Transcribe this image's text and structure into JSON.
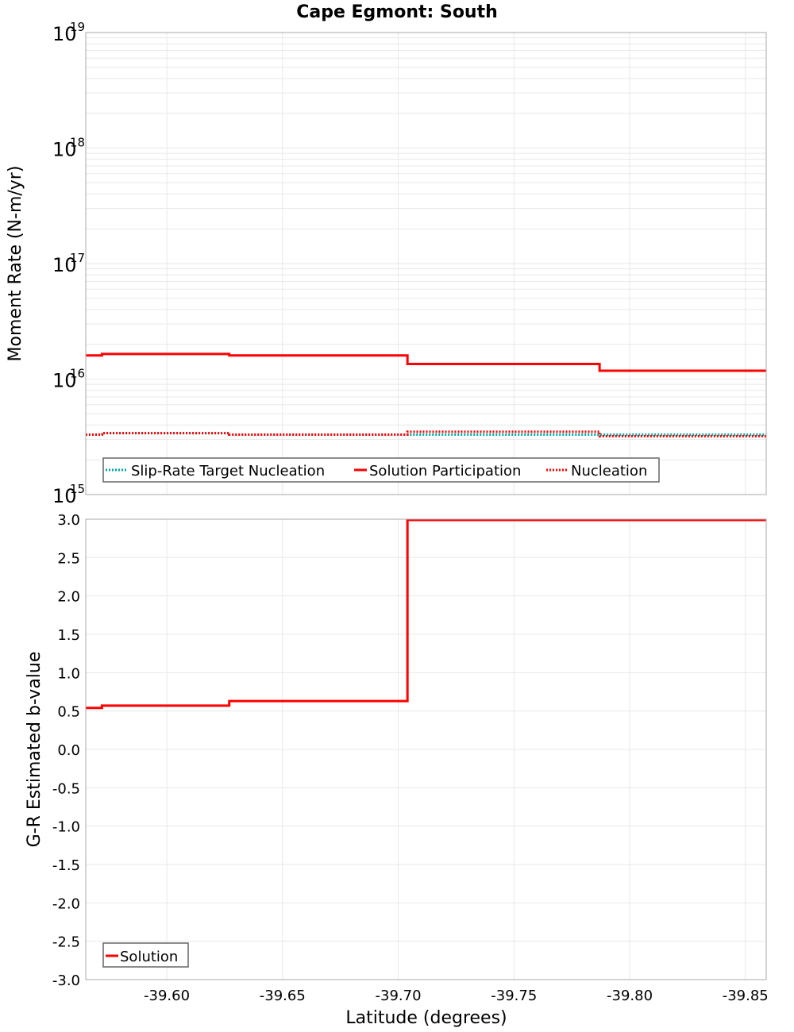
{
  "title": "Cape Egmont: South",
  "colors": {
    "solution": "#ff0000",
    "target": "#00aaaa",
    "nucleation": "#ff0000",
    "grid": "#e8e8e8",
    "axis": "#aaaaaa"
  },
  "top_panel": {
    "ylabel": "Moment Rate (N-m/yr)",
    "yticks": [
      {
        "base": "10",
        "exp": "19"
      },
      {
        "base": "10",
        "exp": "18"
      },
      {
        "base": "10",
        "exp": "17"
      },
      {
        "base": "10",
        "exp": "16"
      },
      {
        "base": "10",
        "exp": "15"
      }
    ],
    "legend": [
      {
        "label": "Slip-Rate Target Nucleation"
      },
      {
        "label": "Solution Participation"
      },
      {
        "label": "Nucleation"
      }
    ]
  },
  "bottom_panel": {
    "ylabel": "G-R Estimated b-value",
    "yticks": [
      "3.0",
      "2.5",
      "2.0",
      "1.5",
      "1.0",
      "0.5",
      "0.0",
      "-0.5",
      "-1.0",
      "-1.5",
      "-2.0",
      "-2.5",
      "-3.0"
    ],
    "legend": [
      {
        "label": "Solution"
      }
    ]
  },
  "xaxis": {
    "label": "Latitude (degrees)",
    "ticks": [
      "-39.60",
      "-39.65",
      "-39.70",
      "-39.75",
      "-39.80",
      "-39.85"
    ]
  },
  "chart_data": [
    {
      "type": "line",
      "title": "Cape Egmont: South",
      "xlabel": "Latitude (degrees)",
      "ylabel": "Moment Rate (N-m/yr)",
      "yscale": "log",
      "ylim": [
        1000000000000000.0,
        1e+19
      ],
      "xlim": [
        -39.565,
        -39.859
      ],
      "x_bins": [
        -39.565,
        -39.572,
        -39.627,
        -39.704,
        -39.787,
        -39.859
      ],
      "series": [
        {
          "name": "Slip-Rate Target Nucleation",
          "style": "dotted",
          "color": "#00aaaa",
          "values": [
            3300000000000000.0,
            3400000000000000.0,
            3300000000000000.0,
            3300000000000000.0,
            3300000000000000.0
          ]
        },
        {
          "name": "Solution Participation",
          "style": "solid",
          "color": "#ff0000",
          "values": [
            1.6e+16,
            1.65e+16,
            1.6e+16,
            1.35e+16,
            1.18e+16
          ]
        },
        {
          "name": "Nucleation",
          "style": "dotted",
          "color": "#ff0000",
          "values": [
            3300000000000000.0,
            3400000000000000.0,
            3300000000000000.0,
            3500000000000000.0,
            3200000000000000.0
          ]
        }
      ],
      "legend_position": "lower-left",
      "grid": true
    },
    {
      "type": "line",
      "xlabel": "Latitude (degrees)",
      "ylabel": "G-R Estimated b-value",
      "ylim": [
        -3.0,
        3.0
      ],
      "xlim": [
        -39.565,
        -39.859
      ],
      "x_bins": [
        -39.565,
        -39.572,
        -39.627,
        -39.704,
        -39.787,
        -39.859
      ],
      "series": [
        {
          "name": "Solution",
          "style": "solid",
          "color": "#ff0000",
          "values": [
            0.54,
            0.57,
            0.63,
            3.0,
            3.0
          ]
        }
      ],
      "legend_position": "lower-left",
      "grid": true
    }
  ]
}
